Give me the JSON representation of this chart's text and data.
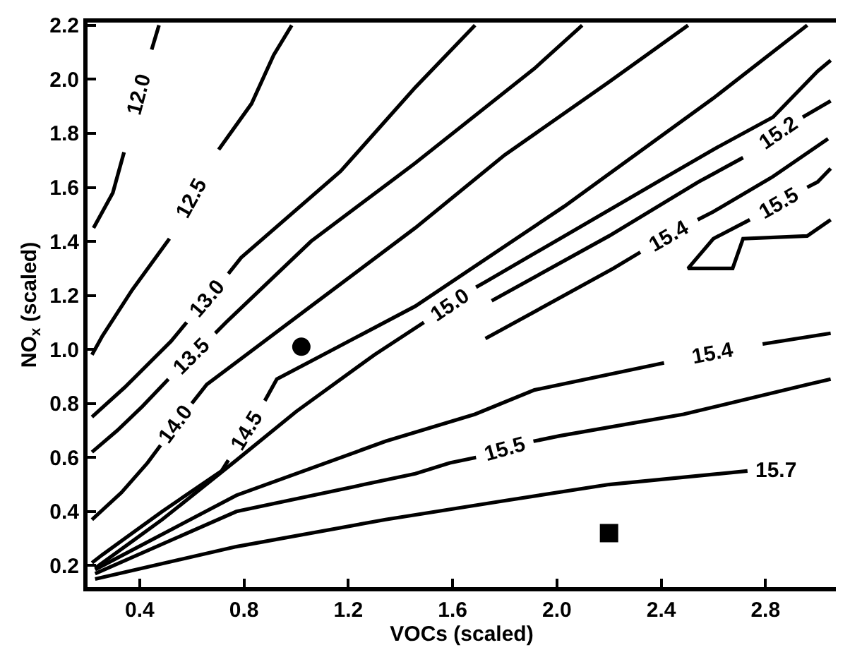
{
  "chart_data": {
    "type": "line",
    "xlabel": "VOCs (scaled)",
    "ylabel": "NO$_{x}$ (scaled)",
    "xlim": [
      0.2,
      3.07
    ],
    "ylim": [
      0.12,
      2.21
    ],
    "xticks": [
      0.4,
      0.8,
      1.2,
      1.6,
      {
        "value": 2.0,
        "label": "2.0"
      },
      2.4,
      2.8
    ],
    "yticks": [
      0.2,
      0.4,
      0.6,
      0.8,
      {
        "value": 1.0,
        "label": "1.0"
      },
      1.2,
      1.4,
      1.6,
      1.8,
      {
        "value": 2.0,
        "label": "2.0"
      },
      2.2
    ],
    "legend": false,
    "marker": "none",
    "line_style": "solid",
    "series": [
      {
        "name": "12.0",
        "color": "#000000",
        "x": [
          0.474,
          0.446,
          0.4,
          0.34,
          0.297,
          0.223
        ],
        "values": [
          2.2,
          2.11,
          null,
          1.73,
          1.58,
          1.45
        ]
      },
      {
        "name": "12.5",
        "color": "#000000",
        "x": [
          0.983,
          0.914,
          0.829,
          0.703,
          0.6,
          0.514,
          0.371,
          0.257,
          0.217
        ],
        "values": [
          2.2,
          2.09,
          1.91,
          1.74,
          null,
          1.41,
          1.22,
          1.05,
          0.98
        ]
      },
      {
        "name": "13.0",
        "color": "#000000",
        "x": [
          1.686,
          1.457,
          1.171,
          0.789,
          0.74,
          0.66,
          0.58,
          0.52,
          0.343,
          0.217
        ],
        "values": [
          2.2,
          1.97,
          1.66,
          1.34,
          1.28,
          null,
          1.1,
          1.03,
          0.86,
          0.75
        ]
      },
      {
        "name": "13.5",
        "color": "#000000",
        "x": [
          2.097,
          1.914,
          1.457,
          1.057,
          0.731,
          0.69,
          0.6,
          0.51,
          0.411,
          0.314,
          0.217
        ],
        "values": [
          2.2,
          2.04,
          1.69,
          1.4,
          1.1,
          1.06,
          null,
          0.89,
          0.79,
          0.7,
          0.62
        ]
      },
      {
        "name": "14.0",
        "color": "#000000",
        "x": [
          2.503,
          2.2,
          1.8,
          1.457,
          1.057,
          0.657,
          0.6,
          0.54,
          0.48,
          0.43,
          0.33,
          0.217
        ],
        "values": [
          2.2,
          1.99,
          1.72,
          1.45,
          1.16,
          0.87,
          0.8,
          null,
          0.645,
          0.58,
          0.47,
          0.37
        ]
      },
      {
        "name": "14.5",
        "color": "#000000",
        "x": [
          2.96,
          2.6,
          2.029,
          1.457,
          0.926,
          0.88,
          0.81,
          0.74,
          0.714,
          0.486,
          0.257,
          0.217
        ],
        "values": [
          2.2,
          1.93,
          1.53,
          1.16,
          0.89,
          0.81,
          null,
          0.59,
          0.55,
          0.4,
          0.24,
          0.21
        ]
      },
      {
        "name": "15.0",
        "color": "#000000",
        "x": [
          0.229,
          0.486,
          0.771,
          1.0,
          1.3,
          1.49,
          1.589,
          1.69,
          1.726,
          2.029,
          2.314,
          2.6,
          2.829,
          3.0,
          3.05
        ],
        "values": [
          0.19,
          0.37,
          0.59,
          0.77,
          0.98,
          1.1,
          null,
          1.23,
          1.25,
          1.42,
          1.58,
          1.74,
          1.86,
          2.03,
          2.07
        ]
      },
      {
        "name": "15.2",
        "color": "#000000",
        "x": [
          1.75,
          2.2,
          2.543,
          2.714,
          2.85,
          2.943,
          3.05
        ],
        "values": [
          1.18,
          1.42,
          1.62,
          1.71,
          null,
          1.86,
          1.92
        ]
      },
      {
        "name": "15.4",
        "color": "#000000",
        "x": [
          1.726,
          2.217,
          2.32,
          2.43,
          2.54,
          2.6,
          2.829,
          3.04
        ],
        "values": [
          1.04,
          1.3,
          1.36,
          null,
          1.48,
          1.51,
          1.64,
          1.78
        ]
      },
      {
        "name": "15.5",
        "color": "#000000",
        "x": [
          3.05,
          3.0,
          2.96,
          2.85,
          2.74,
          2.6,
          2.503,
          2.674,
          2.714,
          2.96,
          3.05
        ],
        "values": [
          1.67,
          1.62,
          1.6,
          null,
          1.48,
          1.41,
          1.3,
          1.3,
          1.41,
          1.42,
          1.48
        ]
      },
      {
        "name": "15.4",
        "color": "#000000",
        "x": [
          0.229,
          0.771,
          1.343,
          1.686,
          1.914,
          2.411,
          2.6,
          2.789,
          3.05
        ],
        "values": [
          0.185,
          0.46,
          0.66,
          0.76,
          0.85,
          0.95,
          null,
          1.02,
          1.06
        ]
      },
      {
        "name": "15.5",
        "color": "#000000",
        "x": [
          0.229,
          0.771,
          1.457,
          1.589,
          1.69,
          1.8,
          1.91,
          2.011,
          2.486,
          2.96,
          3.05
        ],
        "values": [
          0.17,
          0.4,
          0.54,
          0.58,
          0.6,
          null,
          0.66,
          0.68,
          0.76,
          0.87,
          0.89
        ]
      },
      {
        "name": "15.7",
        "color": "#000000",
        "x": [
          0.229,
          0.771,
          1.343,
          1.8,
          2.2,
          2.731
        ],
        "values": [
          0.15,
          0.27,
          0.37,
          0.44,
          0.5,
          0.55
        ]
      },
      {
        "type": "scatter",
        "marker": "circle",
        "color": "#000000",
        "x": [
          1.02
        ],
        "values": [
          1.01
        ]
      },
      {
        "type": "scatter",
        "marker": "square",
        "color": "#000000",
        "x": [
          2.2
        ],
        "values": [
          0.32
        ]
      }
    ]
  }
}
